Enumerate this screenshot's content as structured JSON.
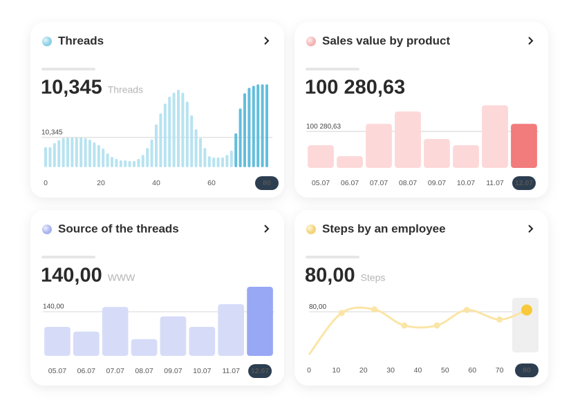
{
  "chart_data": [
    {
      "type": "bar",
      "title": "Threads",
      "headline": "10,345",
      "unit": "Threads",
      "reference": {
        "value": 10345,
        "label": "10,345"
      },
      "x": [
        0,
        1.6,
        3.2,
        4.8,
        6.4,
        8,
        9.6,
        11.2,
        12.8,
        14.4,
        16,
        17.6,
        19.2,
        20.8,
        22.4,
        24,
        25.6,
        27.2,
        28.8,
        30.4,
        32,
        33.6,
        35.2,
        36.8,
        38.4,
        40,
        41.6,
        43.2,
        44.8,
        46.4,
        48,
        49.6,
        51.2,
        52.8,
        54.4,
        56,
        57.6,
        59.2,
        60.8,
        62.4,
        64,
        65.6,
        67.2,
        68.8,
        70.4,
        72,
        73.6,
        75.2,
        76.8,
        78.4,
        80
      ],
      "series": [
        {
          "color": "#b7e3f1",
          "values": [
            7000,
            7000,
            8400,
            9400,
            10100,
            10300,
            10300,
            10300,
            10300,
            10100,
            9600,
            8600,
            7700,
            6500,
            4800,
            3600,
            2900,
            2400,
            2400,
            2200,
            2200,
            2900,
            4300,
            6700,
            9600,
            14900,
            18700,
            22100,
            24500,
            25900,
            26900,
            25900,
            22800,
            18000,
            13200,
            10100,
            6700,
            3800,
            3400,
            3400,
            3400,
            4300,
            5800,
            null,
            null,
            null,
            null,
            null,
            null,
            null,
            null
          ]
        },
        {
          "color": "#63bedc",
          "values": [
            null,
            null,
            null,
            null,
            null,
            null,
            null,
            null,
            null,
            null,
            null,
            null,
            null,
            null,
            null,
            null,
            null,
            null,
            null,
            null,
            null,
            null,
            null,
            null,
            null,
            null,
            null,
            null,
            null,
            null,
            null,
            null,
            null,
            null,
            null,
            null,
            null,
            null,
            null,
            null,
            null,
            null,
            null,
            11800,
            20400,
            25700,
            27600,
            28300,
            28800,
            28800,
            28800
          ]
        }
      ],
      "xlim": [
        -1.5,
        82
      ],
      "xticks": [
        0,
        20,
        40,
        60,
        80
      ],
      "ylim": [
        0,
        30000
      ]
    },
    {
      "type": "bar",
      "title": "Sales value by product",
      "headline": "100 280,63",
      "reference": {
        "value": 100280.63,
        "label": "100 280,63"
      },
      "categories": [
        "05.07",
        "06.07",
        "07.07",
        "08.07",
        "09.07",
        "10.07",
        "11.07",
        "12.07"
      ],
      "values": [
        62400,
        32200,
        121100,
        155100,
        79500,
        62400,
        172200,
        121100
      ],
      "colors": [
        "#fdd8d8",
        "#fdd8d8",
        "#fdd8d8",
        "#fdd8d8",
        "#fdd8d8",
        "#fdd8d8",
        "#fdd8d8",
        "#f27b7b"
      ],
      "ylim": [
        0,
        190000
      ]
    },
    {
      "type": "bar",
      "title": "Source of the threads",
      "headline": "140,00",
      "unit": "WWW",
      "reference": {
        "value": 140,
        "label": "140,00"
      },
      "categories": [
        "05.07",
        "06.07",
        "07.07",
        "08.07",
        "09.07",
        "10.07",
        "11.07",
        "12.07"
      ],
      "values": [
        92,
        77,
        155,
        53,
        125,
        92,
        164,
        219
      ],
      "colors": [
        "#d6dcf8",
        "#d6dcf8",
        "#d6dcf8",
        "#d6dcf8",
        "#d6dcf8",
        "#d6dcf8",
        "#d6dcf8",
        "#98a8f5"
      ],
      "ylim": [
        0,
        230
      ]
    },
    {
      "type": "line",
      "title": "Steps by an employee",
      "headline": "80,00",
      "unit": "Steps",
      "reference": {
        "value": 80,
        "label": "80,00"
      },
      "x": [
        0,
        12,
        24,
        35,
        47,
        58,
        70,
        80
      ],
      "values": [
        8,
        78,
        84,
        57,
        57,
        83,
        67,
        83
      ],
      "color": "#fbe5a5",
      "highlight_color": "#f8c93b",
      "xlim": [
        0,
        80
      ],
      "xticks": [
        0,
        10,
        20,
        30,
        40,
        50,
        60,
        70,
        80
      ],
      "ylim": [
        0,
        100
      ]
    }
  ]
}
